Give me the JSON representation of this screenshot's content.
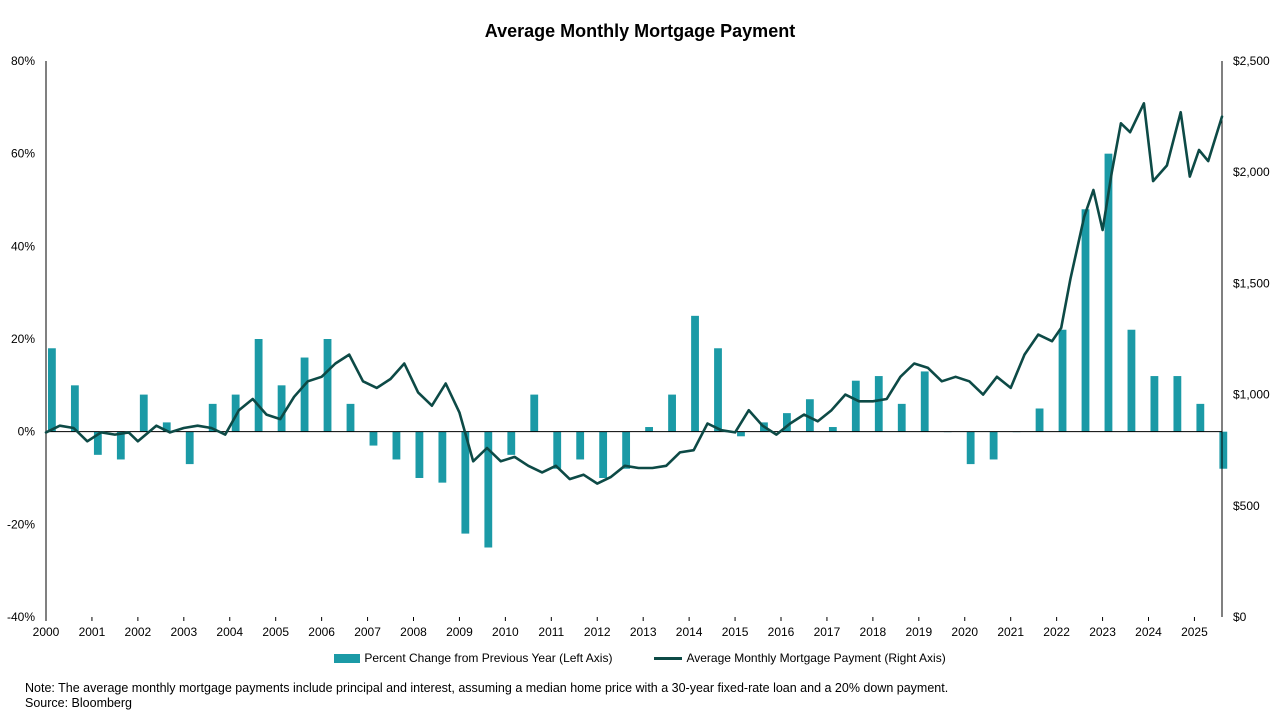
{
  "colors": {
    "bar": "#1b9aa6",
    "line": "#0d4a46",
    "axis": "#000000"
  },
  "chart_data": {
    "type": "bar+line",
    "title": "Average Monthly Mortgage Payment",
    "x_tick_labels": [
      "2000",
      "2001",
      "2002",
      "2003",
      "2004",
      "2005",
      "2006",
      "2007",
      "2008",
      "2009",
      "2010",
      "2011",
      "2012",
      "2013",
      "2014",
      "2015",
      "2016",
      "2017",
      "2018",
      "2019",
      "2020",
      "2021",
      "2022",
      "2023",
      "2024",
      "2025"
    ],
    "left_axis": {
      "ylim": [
        -40,
        80
      ],
      "tick_values": [
        -40,
        -20,
        0,
        20,
        40,
        60,
        80
      ],
      "tick_labels": [
        "-40%",
        "-20%",
        "0%",
        "20%",
        "40%",
        "60%",
        "80%"
      ]
    },
    "right_axis": {
      "ylim": [
        0,
        2500
      ],
      "tick_values": [
        0,
        500,
        1000,
        1500,
        2000,
        2500
      ],
      "tick_labels": [
        "$0",
        "$500",
        "$1,000",
        "$1,500",
        "$2,000",
        "$2,500"
      ]
    },
    "legend_position": "bottom-center",
    "grid": false,
    "series": [
      {
        "name": "Percent Change from Previous Year (Left Axis)",
        "kind": "bar",
        "axis": "left",
        "x": [
          2000.0,
          2000.5,
          2001.0,
          2001.5,
          2002.0,
          2002.5,
          2003.0,
          2003.5,
          2004.0,
          2004.5,
          2005.0,
          2005.5,
          2006.0,
          2006.5,
          2007.0,
          2007.5,
          2008.0,
          2008.5,
          2009.0,
          2009.5,
          2010.0,
          2010.5,
          2011.0,
          2011.5,
          2012.0,
          2012.5,
          2013.0,
          2013.5,
          2014.0,
          2014.5,
          2015.0,
          2015.5,
          2016.0,
          2016.5,
          2017.0,
          2017.5,
          2018.0,
          2018.5,
          2019.0,
          2019.5,
          2020.0,
          2020.5,
          2021.0,
          2021.5,
          2022.0,
          2022.5,
          2023.0,
          2023.5,
          2024.0,
          2024.5,
          2025.0,
          2025.5
        ],
        "values": [
          18,
          10,
          -5,
          -6,
          8,
          2,
          -7,
          6,
          8,
          20,
          10,
          16,
          20,
          6,
          -3,
          -6,
          -10,
          -11,
          -22,
          -25,
          -5,
          8,
          -8,
          -6,
          -10,
          -8,
          1,
          8,
          25,
          18,
          -1,
          2,
          4,
          7,
          1,
          11,
          12,
          6,
          13,
          0,
          -7,
          -6,
          0,
          5,
          22,
          48,
          60,
          22,
          12,
          12,
          6,
          -8
        ]
      },
      {
        "name": "Average Monthly Mortgage Payment (Right Axis)",
        "kind": "line",
        "axis": "right",
        "x": [
          2000.0,
          2000.3,
          2000.6,
          2000.9,
          2001.2,
          2001.5,
          2001.8,
          2002.0,
          2002.4,
          2002.7,
          2003.0,
          2003.3,
          2003.6,
          2003.9,
          2004.2,
          2004.5,
          2004.8,
          2005.1,
          2005.4,
          2005.7,
          2006.0,
          2006.3,
          2006.6,
          2006.9,
          2007.2,
          2007.5,
          2007.8,
          2008.1,
          2008.4,
          2008.7,
          2009.0,
          2009.3,
          2009.6,
          2009.9,
          2010.2,
          2010.5,
          2010.8,
          2011.1,
          2011.4,
          2011.7,
          2012.0,
          2012.3,
          2012.6,
          2012.9,
          2013.2,
          2013.5,
          2013.8,
          2014.1,
          2014.4,
          2014.7,
          2015.0,
          2015.3,
          2015.6,
          2015.9,
          2016.2,
          2016.5,
          2016.8,
          2017.1,
          2017.4,
          2017.7,
          2018.0,
          2018.3,
          2018.6,
          2018.9,
          2019.2,
          2019.5,
          2019.8,
          2020.1,
          2020.4,
          2020.7,
          2021.0,
          2021.3,
          2021.6,
          2021.9,
          2022.1,
          2022.3,
          2022.6,
          2022.8,
          2023.0,
          2023.2,
          2023.4,
          2023.6,
          2023.9,
          2024.1,
          2024.4,
          2024.7,
          2024.9,
          2025.1,
          2025.3,
          2025.6
        ],
        "values": [
          830,
          860,
          850,
          790,
          830,
          820,
          830,
          790,
          860,
          830,
          850,
          860,
          850,
          820,
          930,
          980,
          910,
          890,
          990,
          1060,
          1080,
          1140,
          1180,
          1060,
          1030,
          1070,
          1140,
          1010,
          950,
          1050,
          920,
          700,
          760,
          700,
          720,
          680,
          650,
          680,
          620,
          640,
          600,
          630,
          680,
          670,
          670,
          680,
          740,
          750,
          870,
          840,
          830,
          930,
          860,
          820,
          870,
          910,
          880,
          930,
          1000,
          970,
          970,
          980,
          1080,
          1140,
          1120,
          1060,
          1080,
          1060,
          1000,
          1080,
          1030,
          1180,
          1270,
          1240,
          1300,
          1520,
          1800,
          1920,
          1740,
          2000,
          2220,
          2180,
          2310,
          1960,
          2030,
          2270,
          1980,
          2100,
          2050,
          2250
        ]
      }
    ]
  },
  "legend": {
    "bar_label": "Percent Change from Previous Year (Left Axis)",
    "line_label": "Average Monthly Mortgage Payment (Right Axis)"
  },
  "footer": {
    "note": "Note: The average monthly mortgage payments include principal and interest, assuming a median home price with a 30-year fixed-rate loan and a 20% down payment.",
    "source": "Source: Bloomberg"
  }
}
